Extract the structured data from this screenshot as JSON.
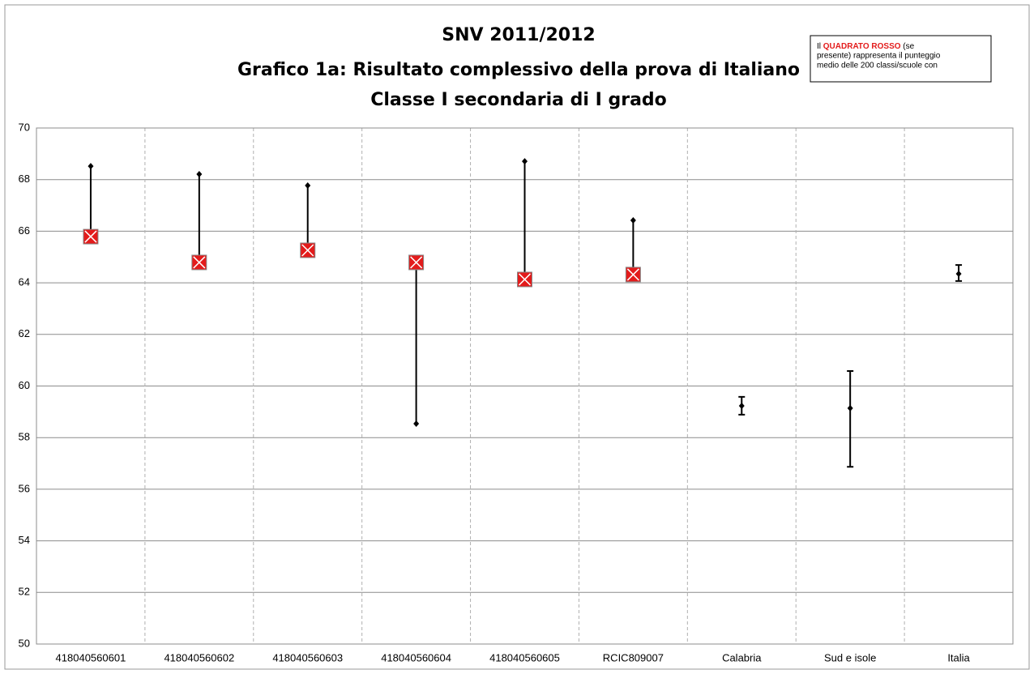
{
  "chart_data": {
    "type": "range",
    "title": [
      "SNV 2011/2012",
      "Grafico 1a: Risultato complessivo della prova di Italiano",
      "Classe I secondaria di I grado"
    ],
    "annotation": [
      "Il ",
      "QUADRATO ROSSO",
      " (se",
      "presente) rappresenta il punteggio",
      "medio delle 200 classi/scuole con"
    ],
    "categories": [
      "418040560601",
      "418040560602",
      "418040560603",
      "418040560604",
      "418040560605",
      "RCIC809007",
      "Calabria",
      "Sud e isole",
      "Italia"
    ],
    "values": [
      68.52,
      68.21,
      67.77,
      58.54,
      68.71,
      66.42,
      59.23,
      59.14,
      64.35
    ],
    "comparison": [
      65.79,
      64.79,
      65.26,
      64.79,
      64.13,
      64.32,
      null,
      null,
      null
    ],
    "lower": [
      null,
      null,
      null,
      null,
      null,
      null,
      58.89,
      56.87,
      64.07
    ],
    "upper": [
      null,
      null,
      null,
      null,
      null,
      null,
      59.58,
      60.58,
      64.69
    ],
    "comparison_color": "#e31b1b",
    "color": "#000000",
    "ylim": [
      50,
      70
    ],
    "yticks": [
      50,
      52,
      54,
      56,
      58,
      60,
      62,
      64,
      66,
      68,
      70
    ],
    "grid": true
  }
}
